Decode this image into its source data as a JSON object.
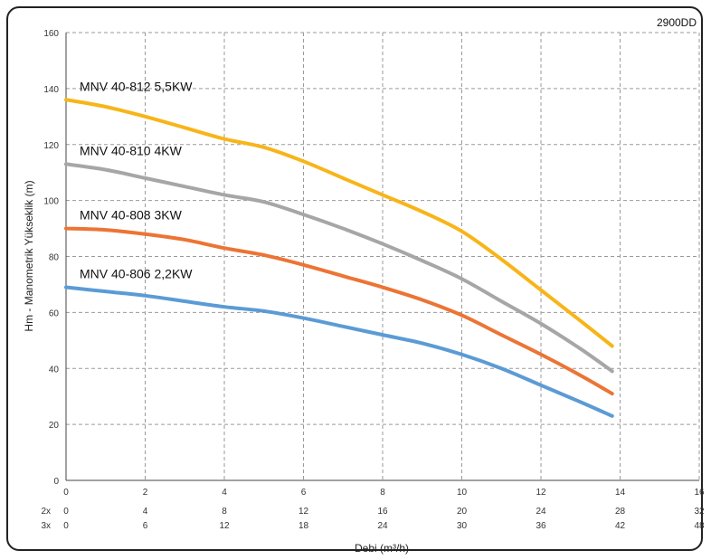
{
  "chart_data": {
    "type": "line",
    "badge": "2900DD",
    "ylabel": "Hm - Manometrik Yükseklik (m)",
    "xlabel": "Debi (m³/h)",
    "ylim": [
      0,
      160
    ],
    "xlim": [
      0,
      16
    ],
    "y_ticks": [
      "0",
      "20",
      "40",
      "60",
      "80",
      "100",
      "120",
      "140",
      "160"
    ],
    "x_rows": [
      {
        "label": "",
        "ticks": [
          "0",
          "2",
          "4",
          "6",
          "8",
          "10",
          "12",
          "14",
          "16"
        ]
      },
      {
        "label": "2x",
        "ticks": [
          "0",
          "4",
          "8",
          "12",
          "16",
          "20",
          "24",
          "28",
          "32"
        ]
      },
      {
        "label": "3x",
        "ticks": [
          "0",
          "6",
          "12",
          "18",
          "24",
          "30",
          "36",
          "42",
          "48"
        ]
      }
    ],
    "grid": true,
    "series": [
      {
        "name": "MNV 40-812 5,5KW",
        "color": "#f7b519",
        "x": [
          0,
          1,
          2,
          3,
          4,
          5,
          6,
          7,
          8,
          9,
          10,
          11,
          12,
          13,
          13.8
        ],
        "y": [
          136,
          133.5,
          130,
          126,
          122,
          119,
          114,
          108,
          102,
          96,
          89,
          79,
          68,
          57,
          48
        ]
      },
      {
        "name": "MNV 40-810 4KW",
        "color": "#a6a6a6",
        "x": [
          0,
          1,
          2,
          3,
          4,
          5,
          6,
          7,
          8,
          9,
          10,
          11,
          12,
          13,
          13.8
        ],
        "y": [
          113,
          111,
          108,
          105,
          102,
          99.5,
          95,
          90,
          84.5,
          78.5,
          72,
          64,
          56,
          47,
          39
        ]
      },
      {
        "name": "MNV 40-808 3KW",
        "color": "#ec7434",
        "x": [
          0,
          1,
          2,
          3,
          4,
          5,
          6,
          7,
          8,
          9,
          10,
          11,
          12,
          13,
          13.8
        ],
        "y": [
          90,
          89.5,
          88,
          86,
          83,
          80.5,
          77,
          73,
          69,
          64.5,
          59,
          52,
          45,
          37.5,
          31
        ]
      },
      {
        "name": "MNV 40-806  2,2KW",
        "color": "#5b9bd5",
        "x": [
          0,
          1,
          2,
          3,
          4,
          5,
          6,
          7,
          8,
          9,
          10,
          11,
          12,
          13,
          13.8
        ],
        "y": [
          69,
          67.5,
          66,
          64,
          62,
          60.5,
          58,
          55,
          52,
          49,
          45,
          40,
          34,
          28,
          23
        ]
      }
    ]
  }
}
